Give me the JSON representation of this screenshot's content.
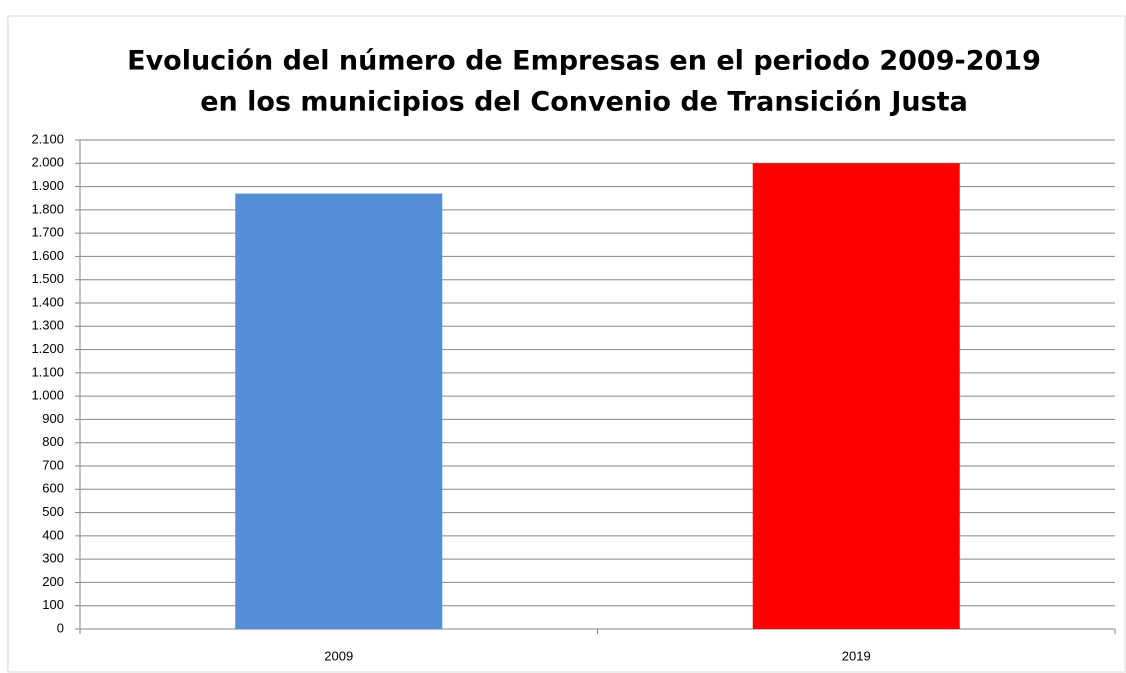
{
  "chart_data": {
    "type": "bar",
    "title": [
      "Evolución del número de Empresas en el periodo 2009-2019",
      "en los municipios del Convenio de Transición Justa"
    ],
    "categories": [
      "2009",
      "2019"
    ],
    "values": [
      1870,
      2000
    ],
    "colors": [
      "#558ed5",
      "#ff0000"
    ],
    "ylim": [
      0,
      2100
    ],
    "yticks": [
      0,
      100,
      200,
      300,
      400,
      500,
      600,
      700,
      800,
      900,
      {
        "value": 1000,
        "label": "1.000"
      },
      {
        "value": 1100,
        "label": "1.100"
      },
      {
        "value": 1200,
        "label": "1.200"
      },
      {
        "value": 1300,
        "label": "1.300"
      },
      {
        "value": 1400,
        "label": "1.400"
      },
      {
        "value": 1500,
        "label": "1.500"
      },
      {
        "value": 1600,
        "label": "1.600"
      },
      {
        "value": 1700,
        "label": "1.700"
      },
      {
        "value": 1800,
        "label": "1.800"
      },
      {
        "value": 1900,
        "label": "1.900"
      },
      {
        "value": 2000,
        "label": "2.000"
      },
      {
        "value": 2100,
        "label": "2.100"
      }
    ],
    "grid": true
  }
}
